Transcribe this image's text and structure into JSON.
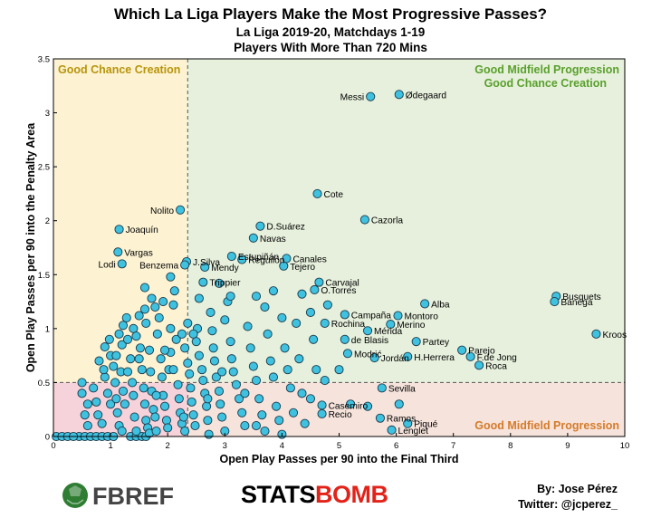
{
  "header": {
    "title": "Which La Liga Players Make the Most Progressive Passes?",
    "subtitle1": "La Liga 2019-20, Matchdays 1-19",
    "subtitle2": "Players With More Than 720 Mins"
  },
  "footer": {
    "fbref_logo": "FBREF",
    "statsbomb_a": "STATS",
    "statsbomb_b": "BOMB",
    "byline1": "By: Jose Pérez",
    "byline2": "Twitter: @jcperez_"
  },
  "colors": {
    "marker_fill": "#3fc1e0",
    "marker_edge": "#1a3a4a",
    "region_top_left": "#fdf3d3",
    "region_top_right": "#e6f0dc",
    "region_bottom_left": "#f6d2da",
    "region_bottom_right": "#f6e3dc",
    "text_gold": "#b8940b",
    "text_green": "#5aa02c",
    "text_orange": "#d57b2a"
  },
  "chart_data": {
    "type": "scatter",
    "xlabel": "Open Play Passes per 90 into the Final Third",
    "ylabel": "Open Play Passes per 90 into the Penalty Area",
    "xlim": [
      0,
      10
    ],
    "ylim": [
      0,
      3.5
    ],
    "xticks": [
      "0",
      "1",
      "2",
      "3",
      "4",
      "5",
      "6",
      "7",
      "8",
      "9",
      "10"
    ],
    "yticks": [
      "0",
      "0.5",
      "1",
      "1.5",
      "2",
      "2.5",
      "3",
      "3.5"
    ],
    "grid": false,
    "thresholds": {
      "x": 2.35,
      "y": 0.5
    },
    "regions": {
      "top_left": "Good Chance Creation",
      "top_right_1": "Good Midfield Progression",
      "top_right_2": "Good Chance Creation",
      "bottom_right": "Good Midfield Progression"
    },
    "labeled_points": [
      {
        "label": "Messi",
        "x": 5.55,
        "y": 3.15
      },
      {
        "label": "Ødegaard",
        "x": 6.05,
        "y": 3.17
      },
      {
        "label": "Cote",
        "x": 4.62,
        "y": 2.25
      },
      {
        "label": "Nolito",
        "x": 2.22,
        "y": 2.1
      },
      {
        "label": "Cazorla",
        "x": 5.45,
        "y": 2.01
      },
      {
        "label": "Joaquín",
        "x": 1.15,
        "y": 1.92
      },
      {
        "label": "D.Suárez",
        "x": 3.62,
        "y": 1.95
      },
      {
        "label": "Navas",
        "x": 3.5,
        "y": 1.84
      },
      {
        "label": "Vargas",
        "x": 1.13,
        "y": 1.71
      },
      {
        "label": "Lodi",
        "x": 1.2,
        "y": 1.6
      },
      {
        "label": "Estupiñán",
        "x": 3.12,
        "y": 1.67
      },
      {
        "label": "J.Silva",
        "x": 2.33,
        "y": 1.62
      },
      {
        "label": "Benzema",
        "x": 2.3,
        "y": 1.59
      },
      {
        "label": "Reguilón",
        "x": 3.3,
        "y": 1.64
      },
      {
        "label": "Canales",
        "x": 4.08,
        "y": 1.65
      },
      {
        "label": "Tejero",
        "x": 4.03,
        "y": 1.58
      },
      {
        "label": "Mendy",
        "x": 2.65,
        "y": 1.57
      },
      {
        "label": "Trippier",
        "x": 2.62,
        "y": 1.43
      },
      {
        "label": "Carvajal",
        "x": 4.65,
        "y": 1.43
      },
      {
        "label": "O.Torres",
        "x": 4.57,
        "y": 1.36
      },
      {
        "label": "Busquets",
        "x": 8.8,
        "y": 1.3
      },
      {
        "label": "Banega",
        "x": 8.77,
        "y": 1.25
      },
      {
        "label": "Alba",
        "x": 6.5,
        "y": 1.23
      },
      {
        "label": "Campaña",
        "x": 5.1,
        "y": 1.13
      },
      {
        "label": "Montoro",
        "x": 6.03,
        "y": 1.12
      },
      {
        "label": "Rochina",
        "x": 4.75,
        "y": 1.05
      },
      {
        "label": "Merino",
        "x": 5.9,
        "y": 1.04
      },
      {
        "label": "Mérida",
        "x": 5.5,
        "y": 0.98
      },
      {
        "label": "Kroos",
        "x": 9.5,
        "y": 0.95
      },
      {
        "label": "de Blasis",
        "x": 5.1,
        "y": 0.9
      },
      {
        "label": "Partey",
        "x": 6.35,
        "y": 0.88
      },
      {
        "label": "Parejo",
        "x": 7.15,
        "y": 0.8
      },
      {
        "label": "F.de Jong",
        "x": 7.3,
        "y": 0.74
      },
      {
        "label": "Modrić",
        "x": 5.15,
        "y": 0.77
      },
      {
        "label": "Jordán",
        "x": 5.62,
        "y": 0.73
      },
      {
        "label": "H.Herrera",
        "x": 6.2,
        "y": 0.74
      },
      {
        "label": "Roca",
        "x": 7.45,
        "y": 0.66
      },
      {
        "label": "Sevilla",
        "x": 5.75,
        "y": 0.45
      },
      {
        "label": "Casemiro",
        "x": 4.7,
        "y": 0.29
      },
      {
        "label": "Recio",
        "x": 4.7,
        "y": 0.21
      },
      {
        "label": "Ramos",
        "x": 5.72,
        "y": 0.17
      },
      {
        "label": "Piqué",
        "x": 6.2,
        "y": 0.12
      },
      {
        "label": "Lenglet",
        "x": 5.92,
        "y": 0.06
      }
    ],
    "other_points": [
      [
        0.5,
        0.5
      ],
      [
        0.5,
        0.4
      ],
      [
        0.6,
        0.3
      ],
      [
        0.55,
        0.2
      ],
      [
        0.6,
        0.1
      ],
      [
        0.45,
        0.0
      ],
      [
        0.55,
        0.0
      ],
      [
        0.65,
        0.0
      ],
      [
        0.75,
        0.0
      ],
      [
        0.85,
        0.0
      ],
      [
        0.05,
        0.0
      ],
      [
        0.15,
        0.0
      ],
      [
        0.25,
        0.0
      ],
      [
        0.35,
        0.0
      ],
      [
        0.95,
        0.0
      ],
      [
        1.05,
        0.0
      ],
      [
        1.35,
        0.0
      ],
      [
        1.45,
        0.0
      ],
      [
        1.55,
        0.0
      ],
      [
        1.62,
        0.0
      ],
      [
        0.7,
        0.45
      ],
      [
        0.75,
        0.32
      ],
      [
        0.78,
        0.2
      ],
      [
        0.85,
        0.12
      ],
      [
        0.9,
        0.55
      ],
      [
        0.95,
        0.4
      ],
      [
        1.0,
        0.3
      ],
      [
        0.88,
        0.62
      ],
      [
        0.9,
        0.83
      ],
      [
        0.98,
        0.9
      ],
      [
        1.0,
        0.75
      ],
      [
        1.05,
        0.65
      ],
      [
        1.08,
        0.5
      ],
      [
        1.1,
        0.35
      ],
      [
        1.12,
        0.22
      ],
      [
        1.15,
        0.1
      ],
      [
        1.2,
        0.05
      ],
      [
        1.18,
        0.6
      ],
      [
        1.22,
        0.42
      ],
      [
        1.25,
        0.3
      ],
      [
        1.2,
        0.85
      ],
      [
        1.15,
        0.95
      ],
      [
        1.22,
        1.03
      ],
      [
        1.28,
        1.1
      ],
      [
        1.3,
        0.9
      ],
      [
        1.35,
        0.72
      ],
      [
        1.38,
        0.5
      ],
      [
        1.4,
        0.38
      ],
      [
        1.42,
        0.18
      ],
      [
        1.45,
        0.05
      ],
      [
        1.4,
        1.0
      ],
      [
        1.45,
        0.93
      ],
      [
        1.5,
        1.12
      ],
      [
        1.52,
        0.82
      ],
      [
        1.55,
        0.62
      ],
      [
        1.58,
        0.45
      ],
      [
        1.6,
        0.3
      ],
      [
        1.62,
        0.15
      ],
      [
        1.65,
        0.08
      ],
      [
        1.68,
        0.03
      ],
      [
        1.6,
        1.38
      ],
      [
        1.6,
        1.18
      ],
      [
        1.62,
        1.05
      ],
      [
        1.68,
        0.8
      ],
      [
        1.7,
        0.6
      ],
      [
        1.72,
        0.42
      ],
      [
        1.75,
        0.25
      ],
      [
        1.78,
        0.18
      ],
      [
        1.8,
        0.05
      ],
      [
        1.82,
        0.95
      ],
      [
        1.78,
        1.2
      ],
      [
        1.85,
        1.1
      ],
      [
        1.88,
        0.72
      ],
      [
        1.9,
        0.55
      ],
      [
        1.92,
        0.38
      ],
      [
        1.95,
        0.28
      ],
      [
        1.98,
        0.15
      ],
      [
        2.0,
        0.08
      ],
      [
        2.02,
        0.62
      ],
      [
        2.05,
        0.78
      ],
      [
        2.05,
        1.0
      ],
      [
        2.1,
        1.22
      ],
      [
        2.12,
        1.35
      ],
      [
        2.15,
        0.9
      ],
      [
        2.18,
        0.48
      ],
      [
        2.2,
        0.35
      ],
      [
        2.22,
        0.22
      ],
      [
        2.25,
        0.12
      ],
      [
        2.28,
        0.18
      ],
      [
        2.3,
        0.05
      ],
      [
        2.3,
        0.82
      ],
      [
        2.35,
        0.68
      ],
      [
        2.38,
        0.58
      ],
      [
        2.4,
        0.45
      ],
      [
        2.42,
        0.32
      ],
      [
        2.45,
        0.2
      ],
      [
        2.48,
        0.1
      ],
      [
        2.5,
        0.88
      ],
      [
        2.52,
        1.0
      ],
      [
        2.55,
        0.75
      ],
      [
        2.6,
        0.62
      ],
      [
        2.62,
        0.52
      ],
      [
        2.65,
        0.4
      ],
      [
        2.68,
        0.28
      ],
      [
        2.7,
        0.15
      ],
      [
        2.72,
        0.02
      ],
      [
        2.75,
        1.15
      ],
      [
        2.78,
        0.98
      ],
      [
        2.8,
        0.82
      ],
      [
        2.82,
        0.7
      ],
      [
        2.85,
        0.55
      ],
      [
        2.9,
        0.42
      ],
      [
        2.92,
        0.3
      ],
      [
        2.95,
        0.18
      ],
      [
        3.0,
        0.05
      ],
      [
        3.0,
        1.08
      ],
      [
        3.05,
        1.25
      ],
      [
        3.1,
        0.88
      ],
      [
        3.12,
        0.72
      ],
      [
        3.15,
        0.6
      ],
      [
        3.2,
        0.48
      ],
      [
        3.25,
        0.35
      ],
      [
        3.3,
        0.22
      ],
      [
        3.35,
        0.1
      ],
      [
        3.4,
        1.02
      ],
      [
        3.45,
        0.82
      ],
      [
        3.5,
        0.65
      ],
      [
        3.55,
        0.52
      ],
      [
        3.6,
        0.35
      ],
      [
        3.65,
        0.2
      ],
      [
        3.7,
        1.2
      ],
      [
        3.75,
        0.95
      ],
      [
        3.8,
        0.7
      ],
      [
        3.85,
        0.55
      ],
      [
        3.9,
        0.28
      ],
      [
        3.95,
        0.15
      ],
      [
        4.0,
        1.1
      ],
      [
        4.05,
        0.82
      ],
      [
        4.1,
        0.62
      ],
      [
        4.15,
        0.45
      ],
      [
        4.2,
        0.22
      ],
      [
        4.25,
        1.05
      ],
      [
        4.3,
        0.72
      ],
      [
        4.35,
        0.4
      ],
      [
        4.5,
        1.15
      ],
      [
        4.55,
        0.9
      ],
      [
        4.6,
        0.62
      ],
      [
        3.1,
        1.3
      ],
      [
        2.9,
        1.42
      ],
      [
        2.55,
        1.28
      ],
      [
        2.35,
        1.05
      ],
      [
        2.45,
        0.95
      ],
      [
        2.05,
        1.48
      ],
      [
        1.92,
        1.25
      ],
      [
        1.72,
        1.28
      ],
      [
        1.5,
        0.72
      ],
      [
        1.3,
        0.6
      ],
      [
        1.1,
        0.75
      ],
      [
        0.8,
        0.7
      ],
      [
        3.55,
        1.3
      ],
      [
        3.85,
        1.35
      ],
      [
        4.35,
        1.32
      ],
      [
        4.8,
        1.22
      ],
      [
        5.0,
        0.62
      ],
      [
        4.75,
        0.52
      ],
      [
        4.5,
        0.35
      ],
      [
        4.4,
        0.12
      ],
      [
        5.2,
        0.3
      ],
      [
        5.5,
        0.28
      ],
      [
        6.05,
        0.3
      ],
      [
        3.7,
        0.05
      ],
      [
        4.0,
        0.02
      ],
      [
        2.1,
        0.62
      ],
      [
        1.95,
        0.8
      ],
      [
        2.25,
        0.95
      ],
      [
        1.8,
        0.38
      ],
      [
        2.7,
        0.35
      ],
      [
        2.95,
        0.6
      ],
      [
        3.35,
        0.4
      ],
      [
        3.55,
        0.1
      ]
    ]
  }
}
